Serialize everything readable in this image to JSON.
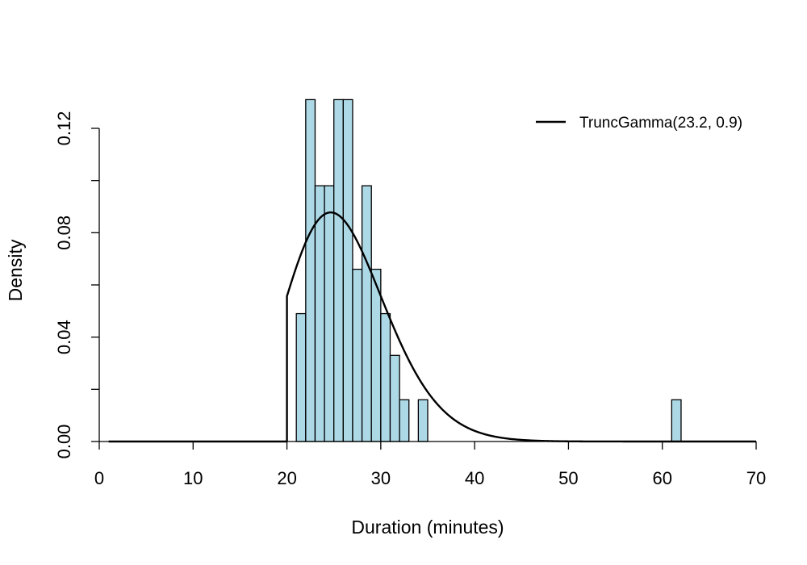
{
  "chart_data": {
    "type": "histogram",
    "bin_width": 1,
    "bars": [
      {
        "x0": 1,
        "x1": 2,
        "density": 0.0
      },
      {
        "x0": 21,
        "x1": 22,
        "density": 0.049
      },
      {
        "x0": 22,
        "x1": 23,
        "density": 0.131
      },
      {
        "x0": 23,
        "x1": 24,
        "density": 0.098
      },
      {
        "x0": 24,
        "x1": 25,
        "density": 0.098
      },
      {
        "x0": 25,
        "x1": 26,
        "density": 0.131
      },
      {
        "x0": 26,
        "x1": 27,
        "density": 0.131
      },
      {
        "x0": 27,
        "x1": 28,
        "density": 0.066
      },
      {
        "x0": 28,
        "x1": 29,
        "density": 0.098
      },
      {
        "x0": 29,
        "x1": 30,
        "density": 0.066
      },
      {
        "x0": 30,
        "x1": 31,
        "density": 0.049
      },
      {
        "x0": 31,
        "x1": 32,
        "density": 0.033
      },
      {
        "x0": 32,
        "x1": 33,
        "density": 0.016
      },
      {
        "x0": 34,
        "x1": 35,
        "density": 0.016
      },
      {
        "x0": 61,
        "x1": 62,
        "density": 0.016
      }
    ],
    "curve": {
      "name": "TruncGamma(23.2, 0.9)",
      "distribution": "gamma",
      "shape": 23.2,
      "rate": 0.9,
      "truncation_lower": 20,
      "x_range": [
        1,
        70
      ]
    },
    "xlabel": "Duration (minutes)",
    "ylabel": "Density",
    "xticks": [
      "0",
      "10",
      "20",
      "30",
      "40",
      "50",
      "60",
      "70"
    ],
    "yticks": [
      "0.00",
      "0.04",
      "0.08",
      "0.12"
    ],
    "xlim": [
      0,
      70
    ],
    "ylim": [
      0,
      0.131
    ],
    "grid": false,
    "legend_position": "top-right",
    "colors": {
      "bar_fill": "#add8e6",
      "bar_edge": "#000000",
      "curve": "#000000"
    }
  }
}
